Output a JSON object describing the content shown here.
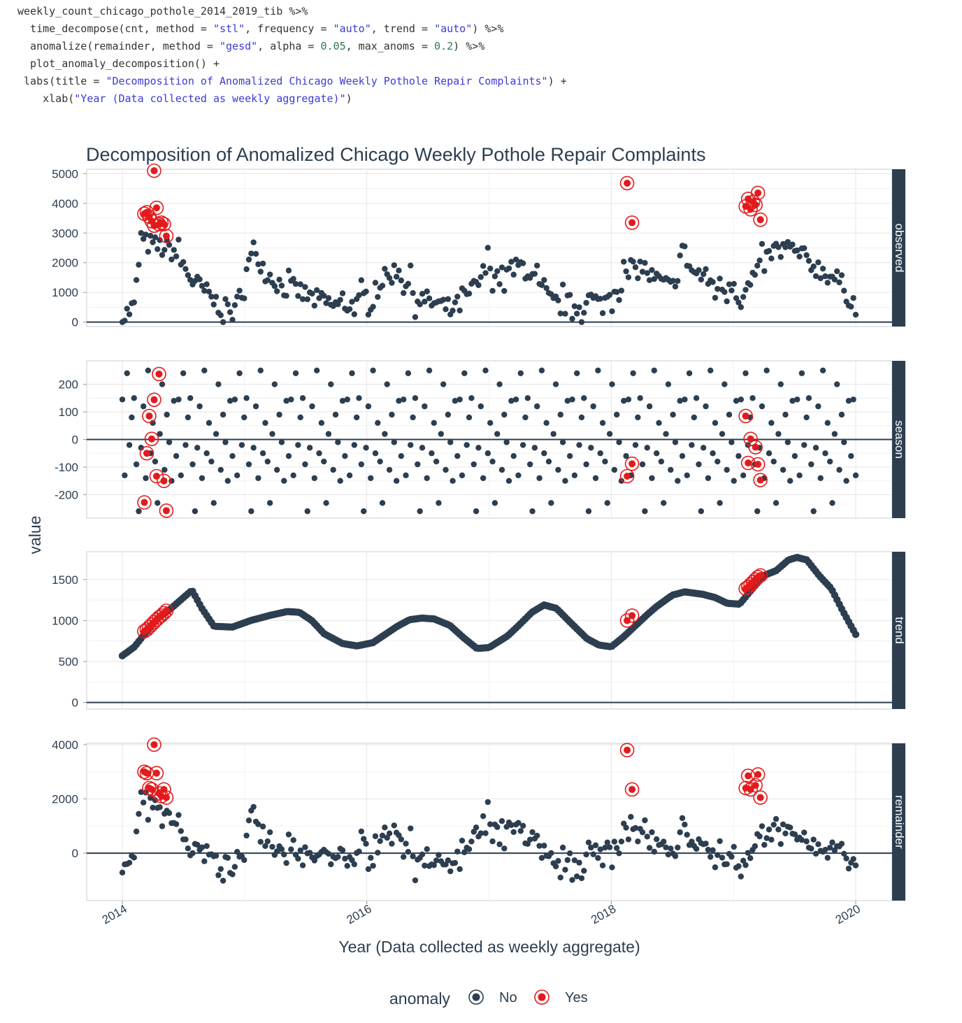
{
  "code": {
    "lines": [
      [
        {
          "t": "weekly_count_chicago_pothole_2014_2019_tib %>%",
          "c": "plain"
        }
      ],
      [
        {
          "t": "  time_decompose(cnt, method = ",
          "c": "plain"
        },
        {
          "t": "\"stl\"",
          "c": "str"
        },
        {
          "t": ", frequency = ",
          "c": "plain"
        },
        {
          "t": "\"auto\"",
          "c": "str"
        },
        {
          "t": ", trend = ",
          "c": "plain"
        },
        {
          "t": "\"auto\"",
          "c": "str"
        },
        {
          "t": ") %>%",
          "c": "plain"
        }
      ],
      [
        {
          "t": "  anomalize(remainder, method = ",
          "c": "plain"
        },
        {
          "t": "\"gesd\"",
          "c": "str"
        },
        {
          "t": ", alpha = ",
          "c": "plain"
        },
        {
          "t": "0.05",
          "c": "num"
        },
        {
          "t": ", max_anoms = ",
          "c": "plain"
        },
        {
          "t": "0.2",
          "c": "num"
        },
        {
          "t": ") %>%",
          "c": "plain"
        }
      ],
      [
        {
          "t": "  plot_anomaly_decomposition() +",
          "c": "plain"
        }
      ],
      [
        {
          "t": " labs(title = ",
          "c": "plain"
        },
        {
          "t": "\"Decomposition of Anomalized Chicago Weekly Pothole Repair Complaints\"",
          "c": "str"
        },
        {
          "t": ") +",
          "c": "plain"
        }
      ],
      [
        {
          "t": "    xlab(",
          "c": "plain"
        },
        {
          "t": "\"Year (Data collected as weekly aggregate)\"",
          "c": "str"
        },
        {
          "t": ")",
          "c": "plain"
        }
      ]
    ]
  },
  "colors": {
    "normal_point": "#2c3e50",
    "anomaly_point": "#e31a1c",
    "strip_bg": "#2c3e50",
    "strip_text": "#ffffff",
    "zero_line": "#2c3e50",
    "grid": "#e6e6e6",
    "panel_border": "#cccccc",
    "text": "#2c3e50",
    "code_string": "#3b3bd6",
    "code_number": "#2d7a4f"
  },
  "chart_data": {
    "type": "scatter",
    "title": "Decomposition of Anomalized Chicago Weekly Pothole Repair Complaints",
    "xlabel": "Year (Data collected as weekly aggregate)",
    "ylabel": "value",
    "x_range": [
      2014,
      2020
    ],
    "x_ticks": [
      "2014",
      "2016",
      "2018",
      "2020"
    ],
    "legend": {
      "title": "anomaly",
      "position": "bottom",
      "entries": [
        "No",
        "Yes"
      ]
    },
    "facets": [
      {
        "name": "observed",
        "ylim": [
          -150,
          5150
        ],
        "yticks": [
          0,
          1000,
          2000,
          3000,
          4000,
          5000
        ],
        "tick_labels": [
          "0",
          "1000",
          "2000",
          "3000",
          "4000",
          "5000"
        ],
        "anomalies": [
          [
            2014.26,
            5100
          ],
          [
            2014.18,
            3650
          ],
          [
            2014.2,
            3700
          ],
          [
            2014.22,
            3550
          ],
          [
            2014.24,
            3400
          ],
          [
            2014.26,
            3250
          ],
          [
            2014.28,
            3850
          ],
          [
            2014.3,
            3300
          ],
          [
            2014.32,
            3350
          ],
          [
            2014.34,
            3300
          ],
          [
            2014.36,
            2900
          ],
          [
            2018.13,
            4680
          ],
          [
            2018.17,
            3350
          ],
          [
            2019.1,
            3900
          ],
          [
            2019.12,
            4150
          ],
          [
            2019.14,
            3800
          ],
          [
            2019.16,
            4050
          ],
          [
            2019.18,
            3950
          ],
          [
            2019.2,
            4350
          ],
          [
            2019.22,
            3450
          ]
        ]
      },
      {
        "name": "season",
        "ylim": [
          -285,
          285
        ],
        "yticks": [
          -200,
          -100,
          0,
          100,
          200
        ],
        "tick_labels": [
          "-200",
          "-100",
          "0",
          "100",
          "200"
        ],
        "anomalies": [
          [
            2014.18,
            -228
          ],
          [
            2014.2,
            -50
          ],
          [
            2014.22,
            85
          ],
          [
            2014.24,
            2
          ],
          [
            2014.26,
            144
          ],
          [
            2014.28,
            -133
          ],
          [
            2014.3,
            237
          ],
          [
            2014.34,
            -150
          ],
          [
            2014.36,
            -258
          ],
          [
            2018.13,
            -133
          ],
          [
            2018.17,
            -88
          ],
          [
            2019.1,
            85
          ],
          [
            2019.12,
            -85
          ],
          [
            2019.14,
            2
          ],
          [
            2019.18,
            -28
          ],
          [
            2019.2,
            -90
          ],
          [
            2019.22,
            -147
          ]
        ]
      },
      {
        "name": "trend",
        "ylim": [
          -80,
          1840
        ],
        "yticks": [
          0,
          500,
          1000,
          1500
        ],
        "tick_labels": [
          "0",
          "500",
          "1000",
          "1500"
        ],
        "anomalies": [
          [
            2014.18,
            870
          ],
          [
            2014.2,
            890
          ],
          [
            2014.22,
            920
          ],
          [
            2014.24,
            950
          ],
          [
            2014.26,
            980
          ],
          [
            2014.28,
            1010
          ],
          [
            2014.3,
            1040
          ],
          [
            2014.32,
            1060
          ],
          [
            2014.34,
            1090
          ],
          [
            2014.36,
            1120
          ],
          [
            2018.13,
            1000
          ],
          [
            2018.17,
            1060
          ],
          [
            2019.1,
            1390
          ],
          [
            2019.12,
            1410
          ],
          [
            2019.14,
            1440
          ],
          [
            2019.16,
            1470
          ],
          [
            2019.18,
            1500
          ],
          [
            2019.2,
            1530
          ],
          [
            2019.22,
            1550
          ]
        ]
      },
      {
        "name": "remainder",
        "ylim": [
          -1750,
          4050
        ],
        "yticks": [
          0,
          2000,
          4000
        ],
        "tick_labels": [
          "0",
          "2000",
          "4000"
        ],
        "anomalies": [
          [
            2014.26,
            4000
          ],
          [
            2014.18,
            3000
          ],
          [
            2014.2,
            2950
          ],
          [
            2014.22,
            2400
          ],
          [
            2014.24,
            2350
          ],
          [
            2014.28,
            2950
          ],
          [
            2014.3,
            2200
          ],
          [
            2014.32,
            2100
          ],
          [
            2014.34,
            2350
          ],
          [
            2014.36,
            2050
          ],
          [
            2018.13,
            3800
          ],
          [
            2018.17,
            2350
          ],
          [
            2019.1,
            2400
          ],
          [
            2019.12,
            2850
          ],
          [
            2019.14,
            2350
          ],
          [
            2019.18,
            2500
          ],
          [
            2019.2,
            2900
          ],
          [
            2019.22,
            2050
          ]
        ]
      }
    ],
    "trend_series": {
      "x": [
        2014.0,
        2014.1,
        2014.2,
        2014.3,
        2014.4,
        2014.5,
        2014.57,
        2014.65,
        2014.75,
        2014.9,
        2015.05,
        2015.2,
        2015.35,
        2015.45,
        2015.55,
        2015.65,
        2015.8,
        2015.92,
        2016.05,
        2016.15,
        2016.25,
        2016.35,
        2016.45,
        2016.55,
        2016.68,
        2016.8,
        2016.9,
        2017.0,
        2017.15,
        2017.25,
        2017.35,
        2017.45,
        2017.55,
        2017.65,
        2017.8,
        2017.9,
        2018.0,
        2018.1,
        2018.2,
        2018.3,
        2018.37,
        2018.5,
        2018.6,
        2018.75,
        2018.85,
        2018.95,
        2019.05,
        2019.15,
        2019.25,
        2019.35,
        2019.45,
        2019.52,
        2019.6,
        2019.7,
        2019.8,
        2019.9,
        2020.0
      ],
      "y": [
        570,
        680,
        870,
        1040,
        1150,
        1280,
        1370,
        1150,
        930,
        920,
        1000,
        1060,
        1110,
        1100,
        1000,
        840,
        720,
        690,
        730,
        830,
        930,
        1010,
        1030,
        1020,
        940,
        780,
        660,
        670,
        810,
        950,
        1100,
        1190,
        1150,
        1000,
        780,
        700,
        680,
        800,
        940,
        1080,
        1170,
        1310,
        1350,
        1320,
        1280,
        1210,
        1200,
        1380,
        1550,
        1610,
        1740,
        1770,
        1740,
        1550,
        1390,
        1100,
        830
      ]
    },
    "observed_series": {
      "x": [
        2014.0,
        2014.05,
        2014.1,
        2014.15,
        2014.42,
        2014.5,
        2014.58,
        2014.66,
        2014.75,
        2014.83,
        2014.92,
        2015.0,
        2015.08,
        2015.17,
        2015.25,
        2015.33,
        2015.42,
        2015.5,
        2015.58,
        2015.66,
        2015.75,
        2015.83,
        2015.92,
        2016.0,
        2016.08,
        2016.17,
        2016.25,
        2016.33,
        2016.42,
        2016.5,
        2016.58,
        2016.66,
        2016.75,
        2016.83,
        2016.92,
        2017.0,
        2017.08,
        2017.17,
        2017.25,
        2017.33,
        2017.42,
        2017.5,
        2017.58,
        2017.66,
        2017.75,
        2017.83,
        2017.92,
        2018.0,
        2018.08,
        2018.25,
        2018.33,
        2018.42,
        2018.5,
        2018.58,
        2018.66,
        2018.75,
        2018.83,
        2018.92,
        2019.0,
        2019.05,
        2019.3,
        2019.38,
        2019.46,
        2019.54,
        2019.62,
        2019.7,
        2019.78,
        2019.86,
        2019.94,
        2020.0
      ],
      "y": [
        100,
        350,
        550,
        2700,
        2400,
        1900,
        1350,
        1100,
        700,
        450,
        300,
        1500,
        2500,
        1700,
        1400,
        1150,
        1100,
        900,
        750,
        650,
        550,
        600,
        550,
        900,
        1300,
        1500,
        1800,
        1300,
        800,
        700,
        600,
        450,
        550,
        900,
        1350,
        2000,
        1500,
        1600,
        1900,
        1700,
        1100,
        700,
        550,
        600,
        500,
        800,
        550,
        1000,
        1400,
        1900,
        1500,
        1300,
        1100,
        2500,
        1700,
        1550,
        1300,
        1150,
        1400,
        700,
        2300,
        2500,
        2400,
        2300,
        2000,
        1800,
        1600,
        1400,
        900,
        600
      ]
    }
  }
}
